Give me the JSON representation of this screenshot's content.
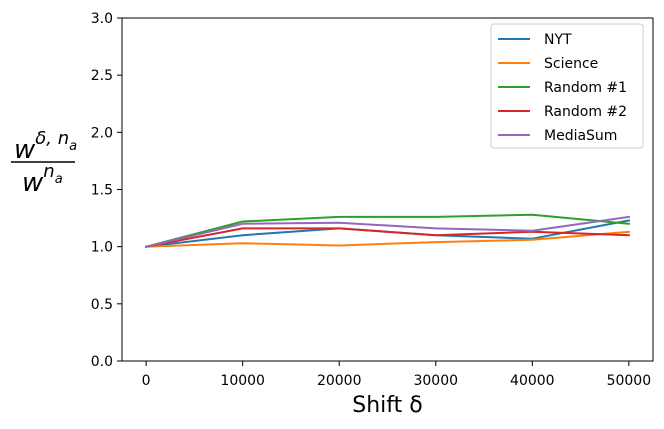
{
  "chart_data": {
    "type": "line",
    "x": [
      0,
      10000,
      20000,
      30000,
      40000,
      50000
    ],
    "xlabel": "Shift δ",
    "ylabel": {
      "numerator_base": "w",
      "numerator_sup": "δ, n",
      "numerator_sub": "a",
      "denominator_base": "w",
      "denominator_sup": "n",
      "denominator_sub": "a"
    },
    "xlim": [
      -2500,
      52500
    ],
    "ylim": [
      0.0,
      3.0
    ],
    "xticks": [
      "0",
      "10000",
      "20000",
      "30000",
      "40000",
      "50000"
    ],
    "yticks": [
      "0.0",
      "0.5",
      "1.0",
      "1.5",
      "2.0",
      "2.5",
      "3.0"
    ],
    "grid": false,
    "legend_position": "top-right",
    "series": [
      {
        "name": "NYT",
        "color": "#1f77b4",
        "values": [
          1.0,
          1.1,
          1.16,
          1.1,
          1.07,
          1.23
        ]
      },
      {
        "name": "Science",
        "color": "#ff7f0e",
        "values": [
          1.0,
          1.03,
          1.01,
          1.04,
          1.06,
          1.13
        ]
      },
      {
        "name": "Random #1",
        "color": "#2ca02c",
        "values": [
          1.0,
          1.22,
          1.26,
          1.26,
          1.28,
          1.2
        ]
      },
      {
        "name": "Random #2",
        "color": "#d62728",
        "values": [
          1.0,
          1.16,
          1.16,
          1.1,
          1.13,
          1.1
        ]
      },
      {
        "name": "MediaSum",
        "color": "#9467bd",
        "values": [
          1.0,
          1.2,
          1.21,
          1.16,
          1.14,
          1.26
        ]
      }
    ]
  }
}
